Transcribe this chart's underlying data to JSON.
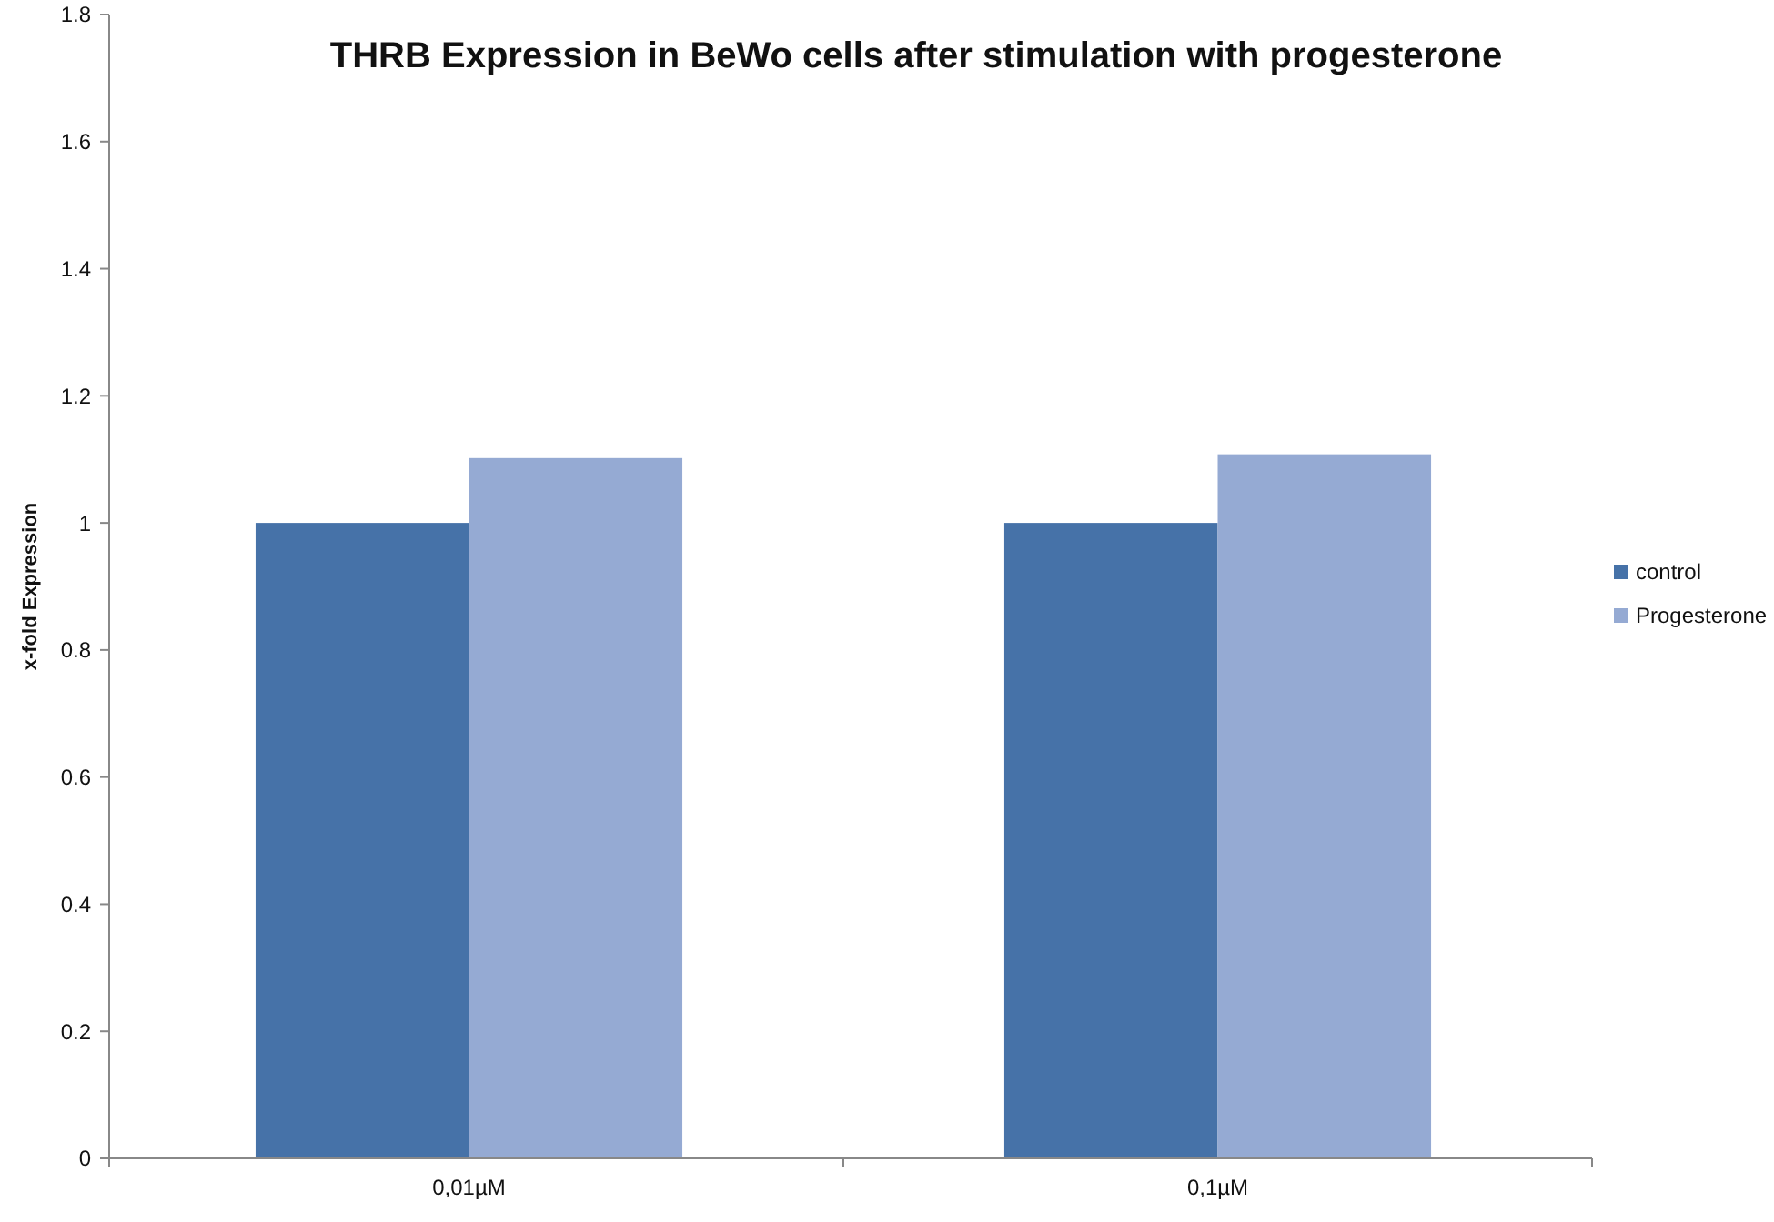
{
  "chart_data": {
    "type": "bar",
    "title": "THRB Expression in BeWo cells after stimulation with progesterone",
    "ylabel": "x-fold Expression",
    "categories": [
      "0,01µM",
      "0,1µM"
    ],
    "series": [
      {
        "name": "control",
        "color": "#4672a8",
        "values": [
          1.0,
          1.0
        ]
      },
      {
        "name": "Progesterone",
        "color": "#95aad3",
        "values": [
          1.102,
          1.108
        ]
      }
    ],
    "ylim": [
      0,
      1.8
    ],
    "yticks": [
      0,
      0.2,
      0.4,
      0.6,
      0.8,
      1,
      1.2,
      1.4,
      1.6,
      1.8
    ],
    "grid": false,
    "legend": "right"
  }
}
